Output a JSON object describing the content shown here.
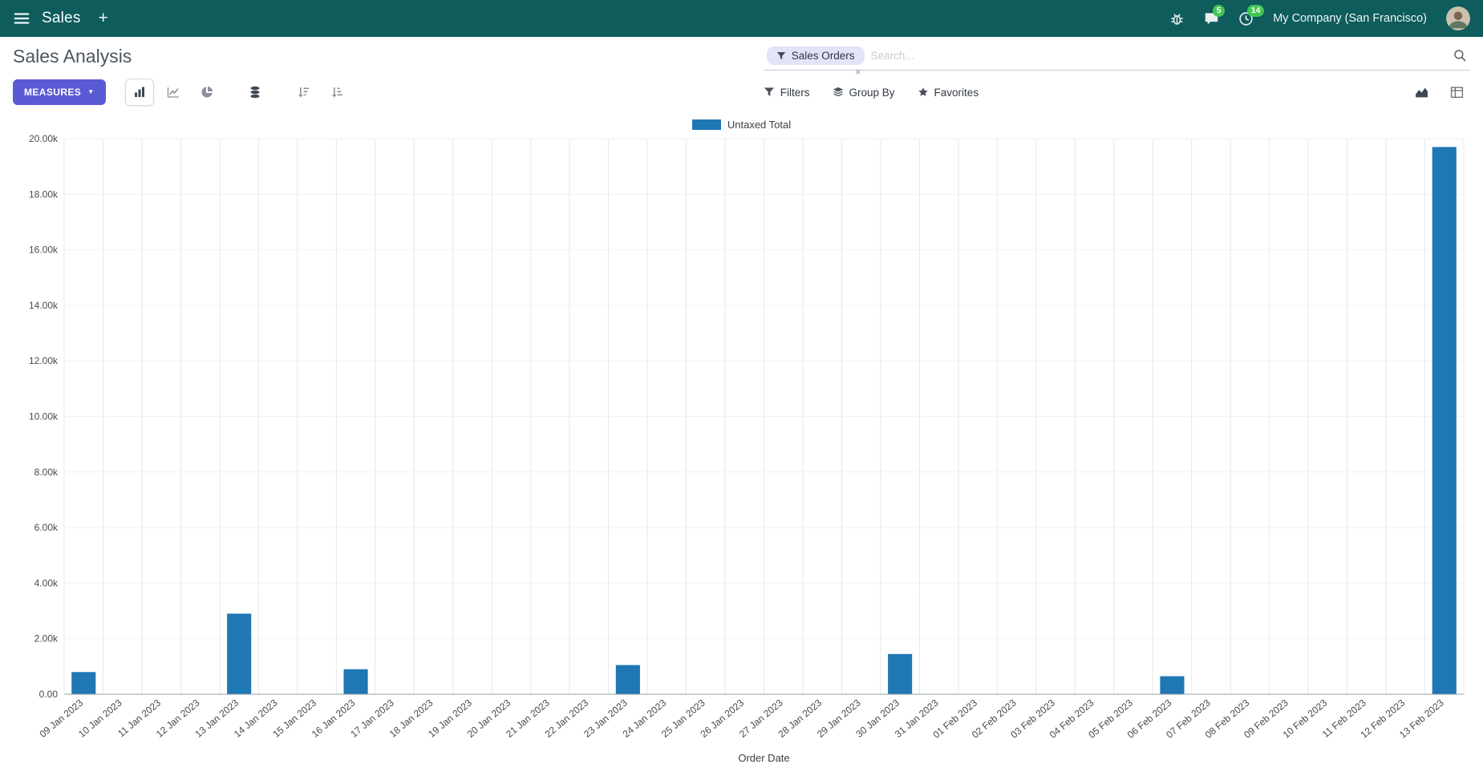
{
  "colors": {
    "topbar": "#0e5c5c",
    "accent": "#5b5ad5",
    "badge": "#43c553",
    "bar": "#1f77b4",
    "facet_bg": "#e4e4f6"
  },
  "icons": {
    "plus": "+",
    "caret": "▼",
    "close": "×"
  },
  "topbar": {
    "app_menu_label": "Sales",
    "messages_badge": "5",
    "activities_badge": "14",
    "company": "My Company (San Francisco)"
  },
  "control_panel": {
    "breadcrumb_title": "Sales Analysis",
    "search": {
      "facet_label": "Sales Orders",
      "placeholder": "Search..."
    },
    "measures_label": "MEASURES",
    "filters_label": "Filters",
    "group_by_label": "Group By",
    "favorites_label": "Favorites"
  },
  "legend": {
    "label": "Untaxed Total"
  },
  "chart_data": {
    "type": "bar",
    "title": "",
    "xlabel": "Order Date",
    "ylabel": "",
    "ylim": [
      0,
      20000
    ],
    "ytick_step": 2000,
    "ytick_labels": [
      "0.00",
      "2.00k",
      "4.00k",
      "6.00k",
      "8.00k",
      "10.00k",
      "12.00k",
      "14.00k",
      "16.00k",
      "18.00k",
      "20.00k"
    ],
    "grid": true,
    "legend_position": "top",
    "bar_color": "#1f77b4",
    "categories": [
      "09 Jan 2023",
      "10 Jan 2023",
      "11 Jan 2023",
      "12 Jan 2023",
      "13 Jan 2023",
      "14 Jan 2023",
      "15 Jan 2023",
      "16 Jan 2023",
      "17 Jan 2023",
      "18 Jan 2023",
      "19 Jan 2023",
      "20 Jan 2023",
      "21 Jan 2023",
      "22 Jan 2023",
      "23 Jan 2023",
      "24 Jan 2023",
      "25 Jan 2023",
      "26 Jan 2023",
      "27 Jan 2023",
      "28 Jan 2023",
      "29 Jan 2023",
      "30 Jan 2023",
      "31 Jan 2023",
      "01 Feb 2023",
      "02 Feb 2023",
      "03 Feb 2023",
      "04 Feb 2023",
      "05 Feb 2023",
      "06 Feb 2023",
      "07 Feb 2023",
      "08 Feb 2023",
      "09 Feb 2023",
      "10 Feb 2023",
      "11 Feb 2023",
      "12 Feb 2023",
      "13 Feb 2023"
    ],
    "series": [
      {
        "name": "Untaxed Total",
        "values": [
          800,
          0,
          0,
          0,
          2900,
          0,
          0,
          900,
          0,
          0,
          0,
          0,
          0,
          0,
          1050,
          0,
          0,
          0,
          0,
          0,
          0,
          1450,
          0,
          0,
          0,
          0,
          0,
          0,
          650,
          0,
          0,
          0,
          0,
          0,
          0,
          19700
        ]
      }
    ]
  }
}
